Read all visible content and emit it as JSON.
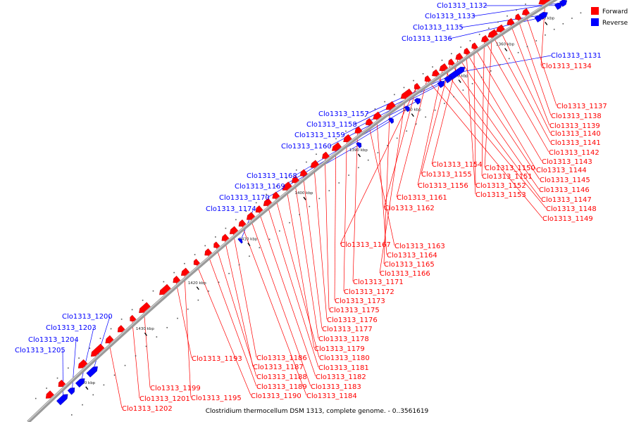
{
  "caption": "Clostridium thermocellum DSM 1313, complete genome. - 0..3561619",
  "colors": {
    "forward": "#ff0000",
    "reverse": "#0000ff",
    "backbone": "#9a9a9a"
  },
  "legend": [
    {
      "label": "Forward",
      "color": "#ff0000"
    },
    {
      "label": "Reverse",
      "color": "#0000ff"
    }
  ],
  "ticks": [
    "1350 kbp",
    "1360 kbp",
    "1370 kbp",
    "1380 kbp",
    "1390 kbp",
    "1400 kbp",
    "1410 kbp",
    "1420 kbp",
    "1430 kbp",
    "1440 kbp"
  ],
  "reverse_labels": [
    "Clo1313_1132",
    "Clo1313_1133",
    "Clo1313_1135",
    "Clo1313_1136",
    "Clo1313_1131",
    "Clo1313_1157",
    "Clo1313_1158",
    "Clo1313_1159",
    "Clo1313_1160",
    "Clo1313_1168",
    "Clo1313_1169",
    "Clo1313_1170",
    "Clo1313_1174",
    "Clo1313_1200",
    "Clo1313_1203",
    "Clo1313_1204",
    "Clo1313_1205"
  ],
  "forward_labels": [
    "Clo1313_1134",
    "Clo1313_1137",
    "Clo1313_1138",
    "Clo1313_1139",
    "Clo1313_1140",
    "Clo1313_1141",
    "Clo1313_1142",
    "Clo1313_1143",
    "Clo1313_1144",
    "Clo1313_1145",
    "Clo1313_1146",
    "Clo1313_1147",
    "Clo1313_1148",
    "Clo1313_1149",
    "Clo1313_1150",
    "Clo1313_1151",
    "Clo1313_1152",
    "Clo1313_1153",
    "Clo1313_1154",
    "Clo1313_1155",
    "Clo1313_1156",
    "Clo1313_1161",
    "Clo1313_1162",
    "Clo1313_1163",
    "Clo1313_1164",
    "Clo1313_1165",
    "Clo1313_1166",
    "Clo1313_1167",
    "Clo1313_1171",
    "Clo1313_1172",
    "Clo1313_1173",
    "Clo1313_1175",
    "Clo1313_1176",
    "Clo1313_1177",
    "Clo1313_1178",
    "Clo1313_1179",
    "Clo1313_1180",
    "Clo1313_1181",
    "Clo1313_1182",
    "Clo1313_1183",
    "Clo1313_1184",
    "Clo1313_1186",
    "Clo1313_1187",
    "Clo1313_1188",
    "Clo1313_1189",
    "Clo1313_1190",
    "Clo1313_1193",
    "Clo1313_1195",
    "Clo1313_1199",
    "Clo1313_1201",
    "Clo1313_1202"
  ]
}
